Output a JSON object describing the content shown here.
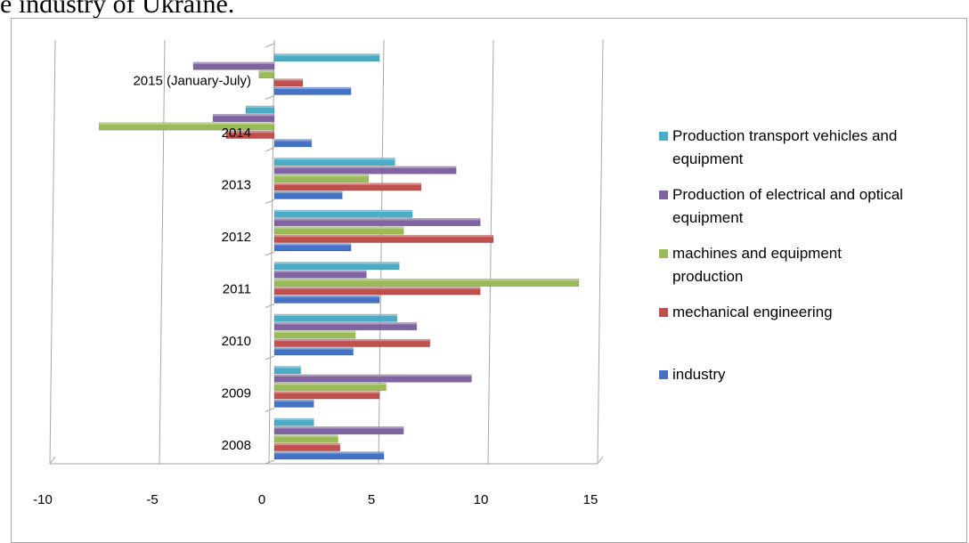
{
  "heading_fragment": "e industry of Ukraine.",
  "chart_data": {
    "type": "bar",
    "orientation": "horizontal",
    "categories": [
      "2008",
      "2009",
      "2010",
      "2011",
      "2012",
      "2013",
      "2014",
      "2015 (January-July)"
    ],
    "series": [
      {
        "name": "industry",
        "color": "#4472c4",
        "values": [
          5.0,
          1.8,
          3.6,
          4.8,
          3.5,
          3.1,
          1.7,
          3.5
        ]
      },
      {
        "name": "mechanical engineering",
        "color": "#c0504d",
        "values": [
          3.0,
          4.8,
          7.1,
          9.4,
          10.0,
          6.7,
          -2.2,
          1.3
        ]
      },
      {
        "name": "machines and equipment production",
        "color": "#9bbb59",
        "values": [
          2.9,
          5.1,
          3.7,
          13.9,
          5.9,
          4.3,
          -8.0,
          -0.7
        ]
      },
      {
        "name": "Production of electrical and optical equipment",
        "color": "#8064a2",
        "values": [
          5.9,
          9.0,
          6.5,
          4.2,
          9.4,
          8.3,
          -2.8,
          -3.7
        ]
      },
      {
        "name": "Production transport vehicles and equipment",
        "color": "#4bacc6",
        "values": [
          1.8,
          1.2,
          5.6,
          5.7,
          6.3,
          5.5,
          -1.3,
          4.8
        ]
      }
    ],
    "xlim": [
      -10,
      15
    ],
    "xticks": [
      "-10",
      "-5",
      "0",
      "5",
      "10",
      "15"
    ],
    "grid": true,
    "legend_position": "right"
  },
  "legend_items": [
    {
      "series_index": 4,
      "lines": [
        "Production transport vehicles and",
        "equipment"
      ]
    },
    {
      "series_index": 3,
      "lines": [
        "Production of electrical and optical",
        "equipment"
      ]
    },
    {
      "series_index": 2,
      "lines": [
        "machines and equipment",
        "production"
      ]
    },
    {
      "series_index": 1,
      "lines": [
        "mechanical engineering"
      ]
    },
    {
      "series_index": 0,
      "lines": [
        "industry"
      ]
    }
  ]
}
